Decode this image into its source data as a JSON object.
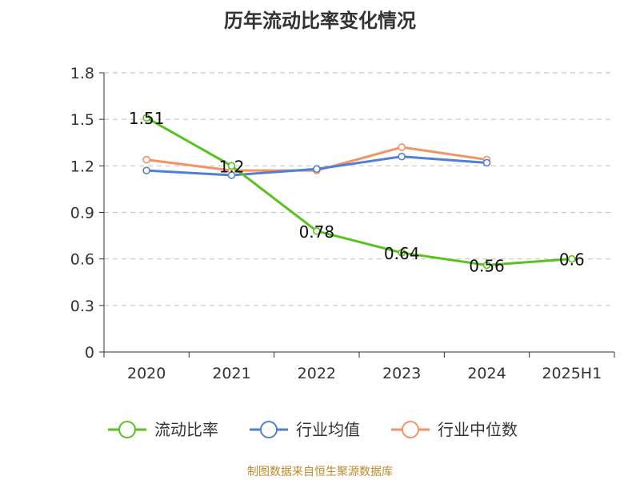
{
  "chart_data": {
    "type": "line",
    "title": "历年流动比率变化情况",
    "categories": [
      "2020",
      "2021",
      "2022",
      "2023",
      "2024",
      "2025H1"
    ],
    "ylim": [
      0,
      1.8
    ],
    "yticks": [
      "0",
      "0.3",
      "0.6",
      "0.9",
      "1.2",
      "1.5",
      "1.8"
    ],
    "grid": true,
    "legend_position": "bottom",
    "series": [
      {
        "name": "流动比率",
        "color": "#5ac21f",
        "values": [
          1.51,
          1.2,
          0.78,
          0.64,
          0.56,
          0.6
        ],
        "labels": [
          "1.51",
          "1.2",
          "0.78",
          "0.64",
          "0.56",
          "0.6"
        ]
      },
      {
        "name": "行业均值",
        "color": "#4f7fd9",
        "values": [
          1.17,
          1.14,
          1.18,
          1.26,
          1.22,
          null
        ]
      },
      {
        "name": "行业中位数",
        "color": "#f39262",
        "values": [
          1.24,
          1.17,
          1.17,
          1.32,
          1.24,
          null
        ]
      }
    ],
    "source": "制图数据来自恒生聚源数据库"
  }
}
